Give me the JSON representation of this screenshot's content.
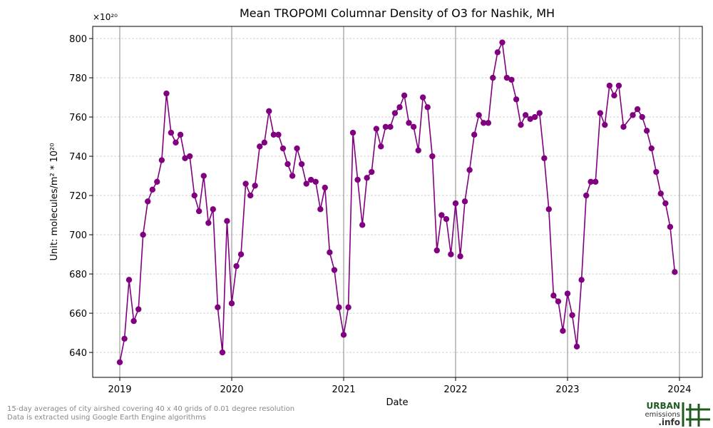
{
  "chart_data": {
    "type": "line",
    "title": "Mean TROPOMI Columnar Density of O3 for Nashik, MH",
    "x_label": "Date",
    "y_label": "Unit: molecules/m² * 10²⁰",
    "y_offset_label": "×10²⁰",
    "notes": [
      "15-day averages of city airshed covering 40 x 40 grids of 0.01 degree resolution",
      "Data is extracted using Google Earth Engine algorithms"
    ],
    "logo": [
      "URBAN",
      "emissions",
      ".info"
    ],
    "grid": true,
    "xlim": [
      2018.758,
      2024.204
    ],
    "ylim": [
      627.3,
      806.2
    ],
    "xticks": [
      2019,
      2020,
      2021,
      2022,
      2023,
      2024
    ],
    "yticks": [
      640,
      660,
      680,
      700,
      720,
      740,
      760,
      780,
      800
    ],
    "series": [
      {
        "name": "O3",
        "color": "#800080",
        "x": [
          2019,
          2019.042,
          2019.083,
          2019.125,
          2019.167,
          2019.208,
          2019.25,
          2019.292,
          2019.333,
          2019.375,
          2019.417,
          2019.458,
          2019.5,
          2019.542,
          2019.583,
          2019.625,
          2019.667,
          2019.708,
          2019.75,
          2019.792,
          2019.833,
          2019.875,
          2019.917,
          2019.958,
          2020,
          2020.042,
          2020.083,
          2020.125,
          2020.167,
          2020.208,
          2020.25,
          2020.292,
          2020.333,
          2020.375,
          2020.417,
          2020.458,
          2020.5,
          2020.542,
          2020.583,
          2020.625,
          2020.667,
          2020.708,
          2020.75,
          2020.792,
          2020.833,
          2020.875,
          2020.917,
          2020.958,
          2021,
          2021.042,
          2021.083,
          2021.125,
          2021.167,
          2021.208,
          2021.25,
          2021.292,
          2021.333,
          2021.375,
          2021.417,
          2021.458,
          2021.5,
          2021.542,
          2021.583,
          2021.625,
          2021.667,
          2021.708,
          2021.75,
          2021.792,
          2021.833,
          2021.875,
          2021.917,
          2021.958,
          2022,
          2022.042,
          2022.083,
          2022.125,
          2022.167,
          2022.208,
          2022.25,
          2022.292,
          2022.333,
          2022.375,
          2022.417,
          2022.458,
          2022.5,
          2022.542,
          2022.583,
          2022.625,
          2022.667,
          2022.708,
          2022.75,
          2022.792,
          2022.833,
          2022.875,
          2022.917,
          2022.958,
          2023,
          2023.042,
          2023.083,
          2023.125,
          2023.167,
          2023.208,
          2023.25,
          2023.292,
          2023.333,
          2023.375,
          2023.417,
          2023.458,
          2023.5,
          2023.583,
          2023.625,
          2023.667,
          2023.708,
          2023.75,
          2023.792,
          2023.833,
          2023.875,
          2023.917,
          2023.958
        ],
        "values": [
          635,
          647,
          677,
          656,
          662,
          700,
          717,
          723,
          727,
          738,
          772,
          752,
          747,
          751,
          739,
          740,
          720,
          712,
          730,
          706,
          713,
          663,
          640,
          707,
          665,
          684,
          690,
          726,
          720,
          725,
          745,
          747,
          763,
          751,
          751,
          744,
          736,
          730,
          744,
          736,
          726,
          728,
          727,
          713,
          724,
          691,
          682,
          663,
          649,
          663,
          752,
          728,
          705,
          729,
          732,
          754,
          745,
          755,
          755,
          762,
          765,
          771,
          757,
          755,
          743,
          770,
          765,
          740,
          692,
          710,
          708,
          690,
          716,
          689,
          717,
          733,
          751,
          761,
          757,
          757,
          780,
          793,
          798,
          780,
          779,
          769,
          756,
          761,
          759,
          760,
          762,
          739,
          713,
          669,
          666,
          651,
          670,
          659,
          643,
          677,
          720,
          727,
          727,
          762,
          756,
          776,
          771,
          776,
          755,
          761,
          764,
          760,
          753,
          744,
          732,
          721,
          716,
          704,
          681
        ]
      }
    ]
  }
}
